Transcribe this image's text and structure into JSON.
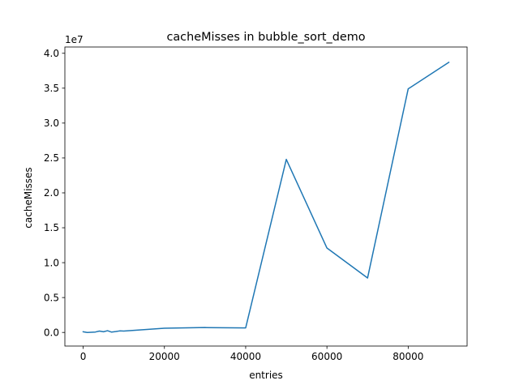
{
  "chart_data": {
    "type": "line",
    "title": "cacheMisses in bubble_sort_demo",
    "xlabel": "entries",
    "ylabel": "cacheMisses",
    "y_offset_label": "1e7",
    "xlim": [
      -4500,
      94500
    ],
    "ylim": [
      -1950000,
      40900000
    ],
    "xticks": [
      0,
      20000,
      40000,
      60000,
      80000
    ],
    "xtick_labels": [
      "0",
      "20000",
      "40000",
      "60000",
      "80000"
    ],
    "yticks": [
      0,
      5000000,
      10000000,
      15000000,
      20000000,
      25000000,
      30000000,
      35000000,
      40000000
    ],
    "ytick_labels": [
      "0.0",
      "0.5",
      "1.0",
      "1.5",
      "2.0",
      "2.5",
      "3.0",
      "3.5",
      "4.0"
    ],
    "grid": false,
    "series": [
      {
        "color": "#1f77b4",
        "x": [
          0,
          1000,
          2000,
          3000,
          4000,
          5000,
          6000,
          7000,
          8000,
          9000,
          10000,
          20000,
          30000,
          40000,
          50000,
          60000,
          70000,
          80000,
          90000
        ],
        "y": [
          100000,
          0,
          30000,
          60000,
          200000,
          100000,
          250000,
          50000,
          120000,
          220000,
          200000,
          600000,
          700000,
          650000,
          24800000,
          12100000,
          7800000,
          34900000,
          38700000
        ]
      }
    ]
  }
}
